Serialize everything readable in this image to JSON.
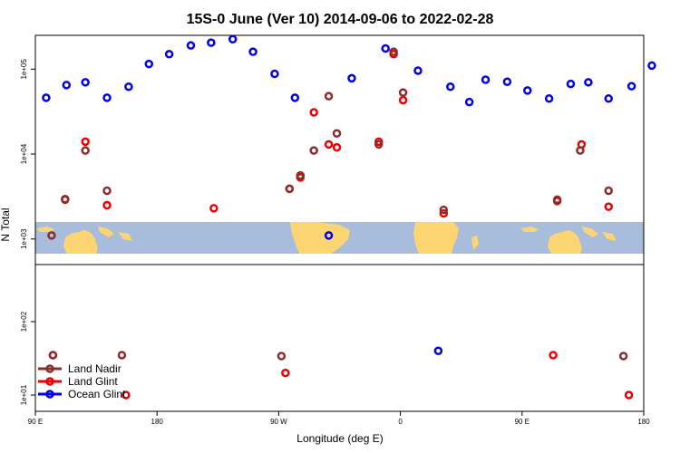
{
  "chart_data": {
    "type": "scatter",
    "title": "15S-0 June (Ver 10)   2014-09-06 to 2022-02-28",
    "xlabel": "Longitude (deg E)",
    "ylabel": "N Total",
    "xticks": [
      {
        "v": 90,
        "label": "90 E"
      },
      {
        "v": 180,
        "label": "180"
      },
      {
        "v": 270,
        "label": "90 W"
      },
      {
        "v": 360,
        "label": "0"
      },
      {
        "v": 450,
        "label": "90 E"
      },
      {
        "v": 540,
        "label": "180"
      }
    ],
    "xlim": [
      90,
      540
    ],
    "upper_panel": {
      "yscale": "log",
      "ylim": [
        500,
        250000
      ],
      "yticks": [
        {
          "v": 1000,
          "label": "1e+03"
        },
        {
          "v": 10000,
          "label": "1e+04"
        },
        {
          "v": 100000,
          "label": "1e+05"
        }
      ]
    },
    "lower_panel": {
      "yscale": "log",
      "ylim": [
        6,
        600
      ],
      "yticks": [
        {
          "v": 10,
          "label": "1e+01"
        },
        {
          "v": 100,
          "label": "1e+02"
        }
      ]
    },
    "map_strip": {
      "water_color": "#a7bddb",
      "land_color": "#fcd572"
    },
    "legend": {
      "position": "bottom-left"
    },
    "series": [
      {
        "name": "Ocean Glint",
        "color": "#0000ee",
        "upper": [
          [
            98,
            46000
          ],
          [
            113,
            65000
          ],
          [
            127,
            70000
          ],
          [
            143,
            46000
          ],
          [
            159,
            62000
          ],
          [
            174,
            115000
          ],
          [
            189,
            150000
          ],
          [
            205,
            190000
          ],
          [
            220,
            205000
          ],
          [
            236,
            225000
          ],
          [
            251,
            160000
          ],
          [
            267,
            88000
          ],
          [
            282,
            46000
          ],
          [
            307,
            1100
          ],
          [
            324,
            78000
          ],
          [
            349,
            175000
          ],
          [
            373,
            96000
          ],
          [
            397,
            62000
          ],
          [
            411,
            41000
          ],
          [
            423,
            75000
          ],
          [
            439,
            71000
          ],
          [
            454,
            56000
          ],
          [
            470,
            45000
          ],
          [
            486,
            67000
          ],
          [
            499,
            70000
          ],
          [
            514,
            45000
          ],
          [
            531,
            63000
          ],
          [
            546,
            110000
          ]
        ],
        "lower": [
          [
            388,
            40
          ]
        ]
      },
      {
        "name": "Land Glint",
        "color": "#ee0000",
        "upper": [
          [
            112,
            2900
          ],
          [
            127,
            14000
          ],
          [
            143,
            2500
          ],
          [
            222,
            2300
          ],
          [
            278,
            3900
          ],
          [
            286,
            5300
          ],
          [
            296,
            31000
          ],
          [
            307,
            13000
          ],
          [
            313,
            12000
          ],
          [
            344,
            14000
          ],
          [
            355,
            150000
          ],
          [
            362,
            43000
          ],
          [
            392,
            2000
          ],
          [
            476,
            2800
          ],
          [
            494,
            13000
          ],
          [
            514,
            2400
          ]
        ],
        "lower": [
          [
            103,
            35
          ],
          [
            157,
            10
          ],
          [
            275,
            20
          ],
          [
            473,
            35
          ],
          [
            529,
            10
          ]
        ]
      },
      {
        "name": "Land Nadir",
        "color": "#8b2d2d",
        "upper": [
          [
            102,
            1100
          ],
          [
            112,
            2950
          ],
          [
            127,
            11000
          ],
          [
            143,
            3700
          ],
          [
            278,
            3900
          ],
          [
            286,
            5600
          ],
          [
            296,
            11000
          ],
          [
            307,
            48000
          ],
          [
            313,
            17500
          ],
          [
            344,
            13000
          ],
          [
            355,
            160000
          ],
          [
            362,
            53000
          ],
          [
            392,
            2200
          ],
          [
            476,
            2900
          ],
          [
            493,
            11000
          ],
          [
            514,
            3700
          ]
        ],
        "lower": [
          [
            103,
            35
          ],
          [
            154,
            35
          ],
          [
            272,
            34
          ],
          [
            525,
            34
          ]
        ]
      }
    ]
  }
}
